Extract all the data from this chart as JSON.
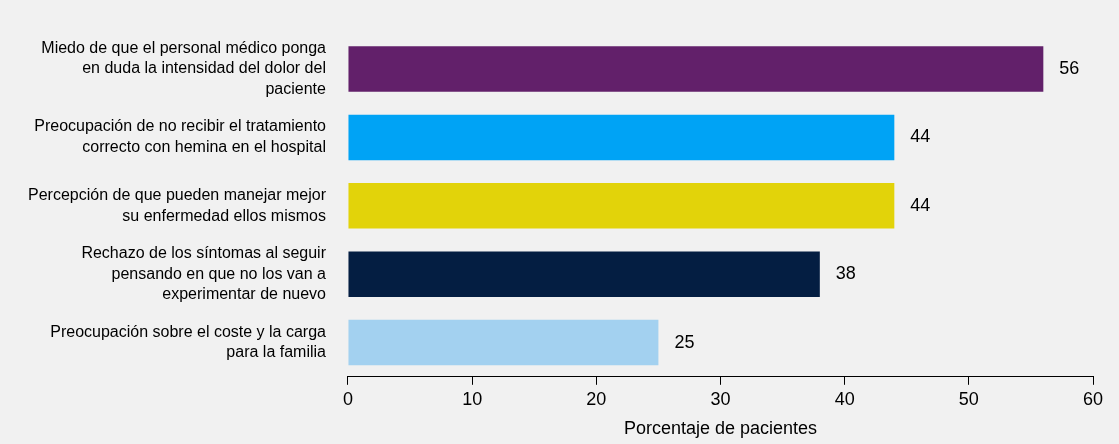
{
  "chart_data": {
    "type": "bar",
    "orientation": "horizontal",
    "xlabel": "Porcentaje de pacientes",
    "categories": [
      "Miedo de que el personal médico ponga en duda la intensidad del dolor del paciente",
      "Preocupación de no recibir el tratamiento correcto con hemina en el hospital",
      "Percepción de que pueden manejar mejor su enfermedad ellos mismos",
      "Rechazo de los síntomas al seguir pensando en que no los van a experimentar de nuevo",
      "Preocupación sobre el coste y la carga para la familia"
    ],
    "values": [
      56,
      44,
      44,
      38,
      25
    ],
    "colors": [
      "#62206a",
      "#00a3f5",
      "#e2d30a",
      "#041e42",
      "#a3d1f0"
    ],
    "xlim": [
      0,
      60
    ],
    "xticks": [
      0,
      10,
      20,
      30,
      40,
      50,
      60
    ],
    "grid": false,
    "legend": false,
    "data_labels": true
  }
}
